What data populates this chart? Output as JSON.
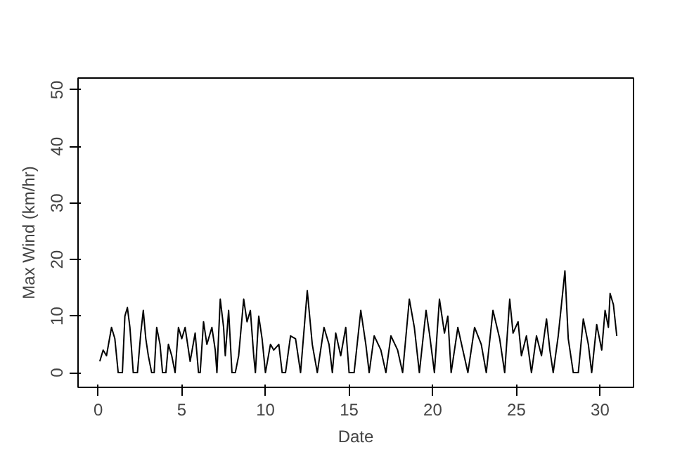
{
  "chart_data": {
    "type": "line",
    "xlabel": "Date",
    "ylabel": "Max Wind (km/hr)",
    "color": "#000000",
    "x": [
      0.1,
      0.3,
      0.5,
      0.8,
      1.0,
      1.2,
      1.45,
      1.6,
      1.75,
      1.9,
      2.1,
      2.35,
      2.55,
      2.7,
      2.85,
      3.0,
      3.2,
      3.35,
      3.5,
      3.7,
      3.85,
      4.05,
      4.2,
      4.4,
      4.6,
      4.8,
      5.0,
      5.2,
      5.35,
      5.5,
      5.8,
      6.0,
      6.1,
      6.3,
      6.5,
      6.8,
      7.0,
      7.1,
      7.3,
      7.5,
      7.6,
      7.8,
      8.0,
      8.2,
      8.4,
      8.7,
      8.9,
      9.1,
      9.3,
      9.4,
      9.6,
      9.8,
      10.0,
      10.3,
      10.5,
      10.8,
      11.0,
      11.2,
      11.5,
      11.8,
      12.1,
      12.5,
      12.8,
      13.1,
      13.5,
      13.8,
      14.0,
      14.2,
      14.5,
      14.8,
      15.0,
      15.3,
      15.7,
      16.0,
      16.2,
      16.5,
      16.9,
      17.2,
      17.5,
      17.9,
      18.2,
      18.6,
      18.9,
      19.2,
      19.6,
      19.8,
      20.1,
      20.4,
      20.7,
      20.9,
      21.1,
      21.5,
      21.8,
      22.1,
      22.5,
      22.9,
      23.2,
      23.6,
      24.0,
      24.3,
      24.6,
      24.8,
      25.1,
      25.3,
      25.6,
      25.9,
      26.2,
      26.5,
      26.8,
      27.0,
      27.2,
      27.5,
      27.9,
      28.1,
      28.4,
      28.7,
      29.0,
      29.3,
      29.5,
      29.8,
      30.1,
      30.3,
      30.5,
      30.6,
      30.8,
      31.0
    ],
    "values": [
      2,
      4,
      3,
      8,
      6,
      0,
      0,
      10,
      11.5,
      8,
      0,
      0,
      7,
      11,
      6,
      3,
      0,
      0,
      8,
      5,
      0,
      0,
      5,
      3,
      0,
      8,
      6,
      8,
      5,
      2,
      7,
      0,
      0,
      9,
      5,
      8,
      4,
      0,
      13,
      8,
      3,
      11,
      0,
      0,
      3,
      13,
      9,
      11,
      3,
      0,
      10,
      6,
      0,
      5,
      4,
      5,
      0,
      0,
      6.5,
      6,
      0,
      14.5,
      5,
      0,
      8,
      5,
      0,
      7,
      3,
      8,
      0,
      0,
      11,
      5,
      0,
      6.5,
      4,
      0,
      6.5,
      4,
      0,
      13,
      8,
      0,
      11,
      7,
      0,
      13,
      7,
      10,
      0,
      8,
      4,
      0,
      8,
      5,
      0,
      11,
      6,
      0,
      13,
      7,
      9,
      3,
      6.5,
      0,
      6.5,
      3,
      9.5,
      4,
      0,
      6.5,
      18,
      6,
      0,
      0,
      9.5,
      5,
      0,
      8.5,
      4,
      11,
      8,
      14,
      12,
      6.5
    ],
    "xlim": [
      -1.2,
      32
    ],
    "ylim": [
      -2.6,
      52.1
    ],
    "xticks": [
      0,
      5,
      10,
      15,
      20,
      25,
      30
    ],
    "yticks": [
      0,
      10,
      20,
      30,
      40,
      50
    ],
    "grid": false,
    "marker": "none",
    "line_style": "solid"
  }
}
